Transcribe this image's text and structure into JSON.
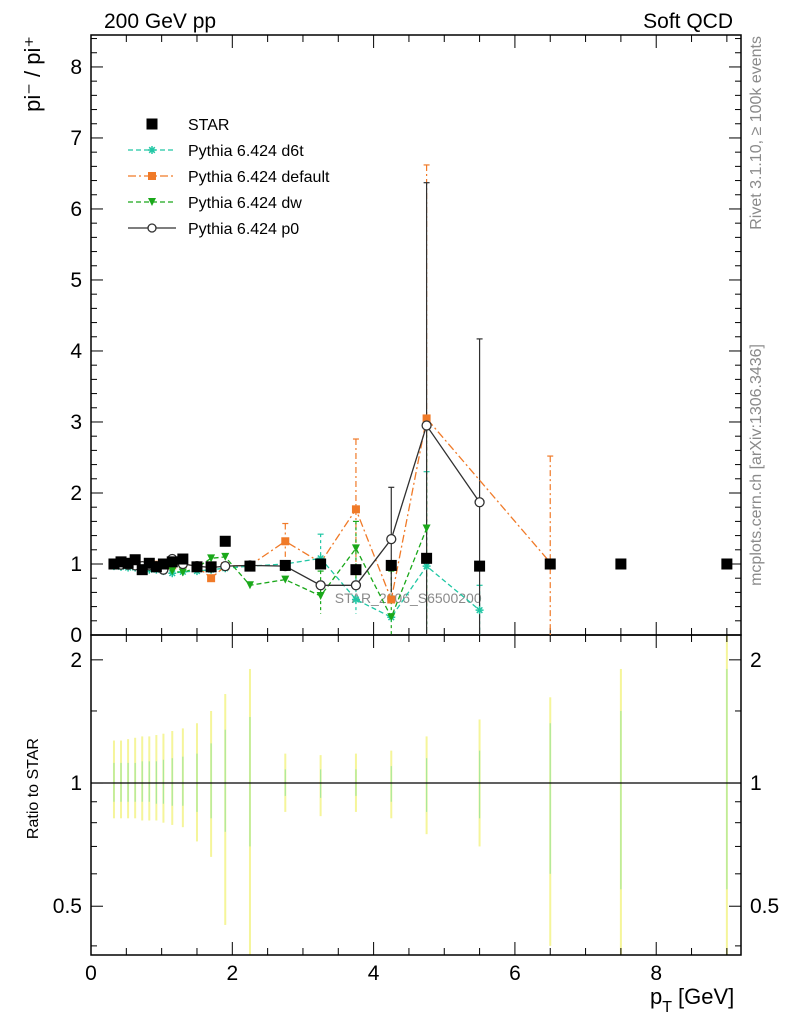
{
  "header": {
    "left": "200 GeV pp",
    "right": "Soft QCD"
  },
  "side": {
    "rivet": "Rivet 3.1.10, ≥ 100k events",
    "mcplots": "mcplots.cern.ch [arXiv:1306.3436]"
  },
  "watermark": "STAR_2006_S6500200",
  "axes": {
    "ylabel_main": "pi⁻ / pi⁺",
    "ylabel_ratio": "Ratio to STAR",
    "xlabel": "p",
    "xlabel_sub": "T",
    "xlabel_unit": "[GeV]"
  },
  "chart_data": {
    "type": "line",
    "x_range": [
      0,
      9.2
    ],
    "main_ylim": [
      0,
      8.45
    ],
    "ratio_ylim": [
      0.38,
      2.3
    ],
    "ratio_log": true,
    "x_ticks": [
      0,
      2,
      4,
      6,
      8
    ],
    "main_y_ticks": [
      0,
      1,
      2,
      3,
      4,
      5,
      6,
      7,
      8
    ],
    "ratio_y_ticks": [
      0.5,
      1,
      2
    ],
    "legend_position": "top-left",
    "series": [
      {
        "name": "STAR",
        "color": "#000000",
        "marker": "square",
        "x": [
          0.325,
          0.425,
          0.525,
          0.625,
          0.725,
          0.825,
          0.925,
          1.025,
          1.15,
          1.3,
          1.5,
          1.7,
          1.9,
          2.25,
          2.75,
          3.25,
          3.75,
          4.25,
          4.75,
          5.5,
          6.5,
          7.5,
          9.0
        ],
        "y": [
          1.0,
          1.03,
          1.01,
          1.06,
          0.92,
          1.01,
          0.96,
          1.0,
          1.03,
          1.07,
          0.96,
          0.96,
          1.32,
          0.97,
          0.98,
          1.0,
          0.92,
          0.98,
          1.08,
          0.97,
          1.0,
          1.0,
          1.0
        ]
      },
      {
        "name": "Pythia 6.424 d6t",
        "color": "#20c7a4",
        "marker": "star",
        "dash": "dashed",
        "x": [
          0.325,
          0.425,
          0.525,
          0.625,
          0.725,
          0.825,
          0.925,
          1.025,
          1.15,
          1.3,
          1.5,
          1.7,
          1.9,
          2.25,
          2.75,
          3.25,
          3.75,
          4.25,
          4.75,
          5.5
        ],
        "y": [
          0.97,
          0.96,
          0.95,
          0.95,
          0.93,
          0.92,
          0.92,
          0.9,
          0.87,
          0.89,
          0.9,
          0.92,
          0.94,
          0.97,
          1.0,
          1.08,
          0.5,
          0.25,
          0.97,
          0.35
        ]
      },
      {
        "name": "Pythia 6.424 default",
        "color": "#f07a28",
        "marker": "square",
        "dash": "dash-dot",
        "x": [
          0.325,
          0.425,
          0.525,
          0.625,
          0.725,
          0.825,
          0.925,
          1.025,
          1.15,
          1.3,
          1.5,
          1.7,
          1.9,
          2.25,
          2.75,
          3.25,
          3.75,
          4.25,
          4.75,
          6.5
        ],
        "y": [
          1.0,
          1.0,
          0.99,
          0.99,
          0.98,
          0.99,
          0.99,
          0.98,
          0.98,
          1.0,
          0.97,
          0.8,
          0.97,
          0.98,
          1.32,
          1.02,
          1.77,
          0.5,
          3.05,
          1.02
        ]
      },
      {
        "name": "Pythia 6.424 dw",
        "color": "#1aa81a",
        "marker": "triangle-down",
        "dash": "dashed",
        "x": [
          0.325,
          0.425,
          0.525,
          0.625,
          0.725,
          0.825,
          0.925,
          1.025,
          1.15,
          1.3,
          1.5,
          1.7,
          1.9,
          2.25,
          2.75,
          3.25,
          3.75,
          4.25,
          4.75
        ],
        "y": [
          0.99,
          0.98,
          0.97,
          0.98,
          0.96,
          0.95,
          0.95,
          0.93,
          0.9,
          0.88,
          0.95,
          1.08,
          1.1,
          0.7,
          0.78,
          0.55,
          1.22,
          0.25,
          1.5
        ]
      },
      {
        "name": "Pythia 6.424 p0",
        "color": "#303030",
        "marker": "circle-open",
        "dash": "solid",
        "x": [
          0.325,
          0.425,
          0.525,
          0.625,
          0.725,
          0.825,
          0.925,
          1.025,
          1.15,
          1.3,
          1.5,
          1.7,
          1.9,
          2.25,
          2.75,
          3.25,
          3.75,
          4.25,
          4.75,
          5.5
        ],
        "y": [
          1.0,
          0.99,
          0.99,
          0.98,
          0.97,
          0.98,
          0.97,
          0.92,
          1.07,
          1.0,
          0.97,
          0.95,
          0.97,
          0.98,
          0.97,
          0.7,
          0.7,
          1.35,
          2.95,
          1.87
        ]
      }
    ],
    "error_bars": {
      "default": {
        "x": [
          2.75,
          3.75,
          4.75,
          6.5
        ],
        "low": [
          1.1,
          0.8,
          0.0,
          0.0
        ],
        "high": [
          1.57,
          2.76,
          6.62,
          2.52
        ]
      },
      "d6t": {
        "x": [
          3.25,
          3.75,
          4.75,
          5.5
        ],
        "low": [
          0.9,
          0.3,
          0.0,
          0.0
        ],
        "high": [
          1.42,
          0.9,
          2.3,
          0.7
        ]
      },
      "dw": {
        "x": [
          3.25,
          3.75,
          4.25,
          4.75
        ],
        "low": [
          0.3,
          0.7,
          0.0,
          0.1
        ],
        "high": [
          0.9,
          1.6,
          0.9,
          2.9
        ]
      },
      "p0": {
        "x": [
          4.25,
          4.75,
          5.5
        ],
        "low": [
          0.6,
          0.0,
          0.0
        ],
        "high": [
          2.08,
          6.37,
          4.17
        ]
      }
    },
    "ratio_bands": {
      "x": [
        0.325,
        0.425,
        0.525,
        0.625,
        0.725,
        0.825,
        0.925,
        1.025,
        1.15,
        1.3,
        1.5,
        1.7,
        1.9,
        2.25,
        2.75,
        3.25,
        3.75,
        4.25,
        4.75,
        5.5,
        6.5,
        7.5,
        9.0
      ],
      "yellow_low": [
        0.82,
        0.82,
        0.82,
        0.82,
        0.81,
        0.81,
        0.81,
        0.8,
        0.79,
        0.78,
        0.72,
        0.66,
        0.45,
        0.38,
        0.85,
        0.83,
        0.85,
        0.82,
        0.75,
        0.7,
        0.4,
        0.38,
        0.38
      ],
      "yellow_high": [
        1.27,
        1.27,
        1.28,
        1.29,
        1.3,
        1.3,
        1.31,
        1.32,
        1.34,
        1.36,
        1.4,
        1.5,
        1.65,
        1.9,
        1.18,
        1.17,
        1.18,
        1.2,
        1.3,
        1.43,
        1.62,
        1.9,
        2.3
      ],
      "green_low": [
        0.9,
        0.9,
        0.9,
        0.9,
        0.9,
        0.9,
        0.89,
        0.89,
        0.88,
        0.88,
        0.85,
        0.82,
        0.76,
        0.7,
        0.93,
        0.92,
        0.93,
        0.9,
        0.85,
        0.82,
        0.6,
        0.55,
        0.55
      ],
      "green_high": [
        1.12,
        1.12,
        1.12,
        1.12,
        1.13,
        1.13,
        1.13,
        1.14,
        1.15,
        1.16,
        1.18,
        1.25,
        1.35,
        1.45,
        1.08,
        1.08,
        1.08,
        1.1,
        1.15,
        1.2,
        1.4,
        1.5,
        1.9
      ]
    }
  }
}
